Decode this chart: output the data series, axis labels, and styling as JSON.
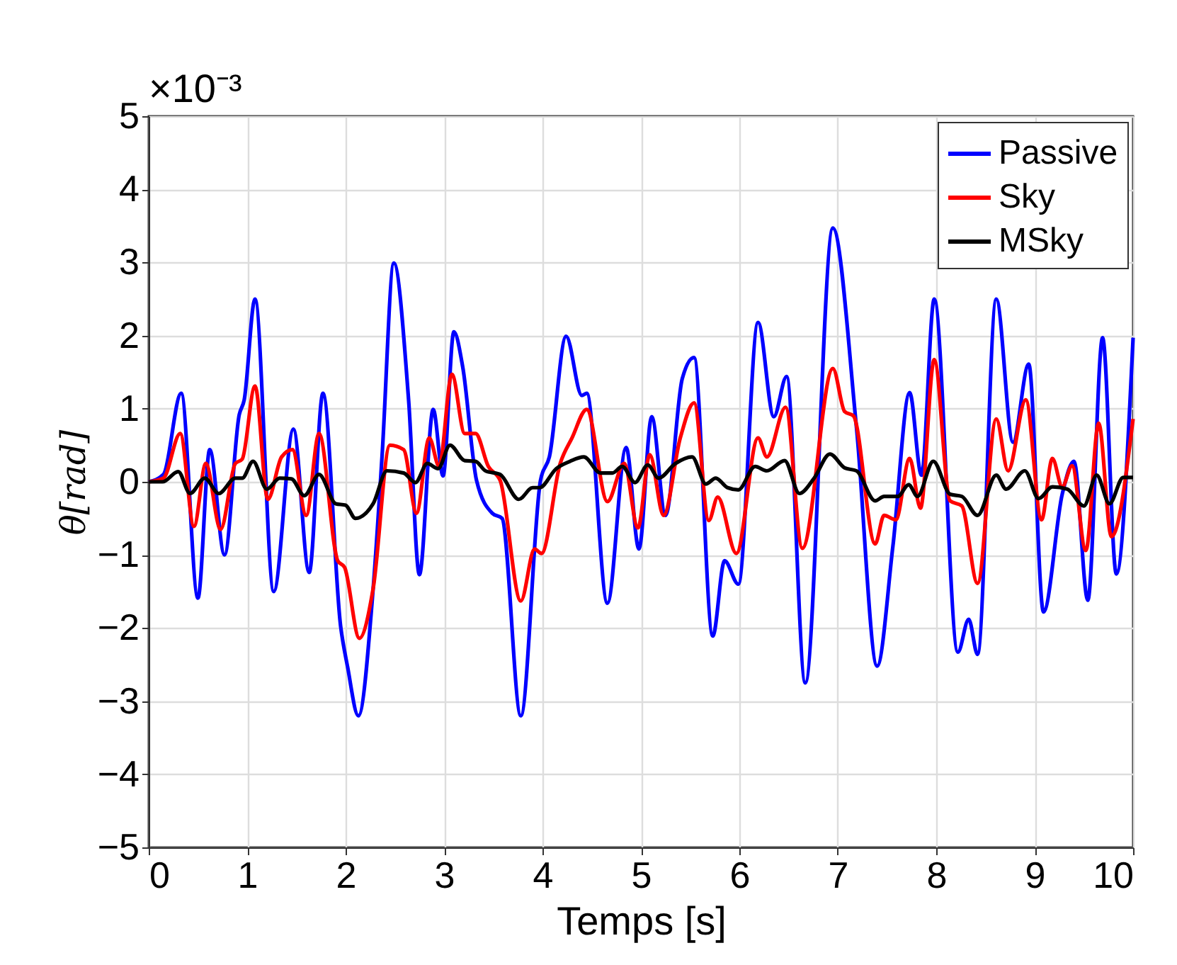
{
  "chart_data": {
    "type": "line",
    "xlabel": "Temps [s]",
    "ylabel": "θ[rad]",
    "annotations": [
      "×10⁻³"
    ],
    "xlim": [
      0,
      10
    ],
    "xticks": [
      0,
      1,
      2,
      3,
      4,
      5,
      6,
      7,
      8,
      9,
      10
    ],
    "ylim": [
      -5,
      5
    ],
    "yticks": [
      -5,
      -4,
      -3,
      -2,
      -1,
      0,
      1,
      2,
      3,
      4,
      5
    ],
    "grid": true,
    "legend": "top right",
    "line_style": "solid",
    "marker": "none",
    "series": [
      {
        "name": "Passive",
        "color": "#0000ff",
        "x": [
          0,
          0.15,
          0.33,
          0.5,
          0.62,
          0.77,
          0.92,
          0.97,
          1.08,
          1.27,
          1.47,
          1.63,
          1.77,
          1.95,
          2.02,
          2.13,
          2.28,
          2.37,
          2.49,
          2.64,
          2.75,
          2.89,
          2.99,
          3.1,
          3.19,
          3.33,
          3.49,
          3.59,
          3.78,
          3.98,
          4.07,
          4.24,
          4.4,
          4.45,
          4.66,
          4.85,
          4.98,
          5.11,
          5.25,
          5.42,
          5.54,
          5.73,
          5.85,
          5.99,
          6.19,
          6.35,
          6.48,
          6.67,
          6.95,
          7.19,
          7.4,
          7.56,
          7.73,
          7.85,
          7.98,
          8.22,
          8.33,
          8.42,
          8.61,
          8.78,
          8.94,
          9.09,
          9.28,
          9.4,
          9.54,
          9.69,
          9.83,
          10
        ],
        "values": [
          0,
          0.1,
          1.21,
          -1.59,
          0.44,
          -1.0,
          0.92,
          1.12,
          2.5,
          -1.5,
          0.72,
          -1.24,
          1.21,
          -1.98,
          -2.53,
          -3.2,
          -1.46,
          0.34,
          2.99,
          1.12,
          -1.27,
          0.99,
          0.08,
          2.05,
          1.57,
          0.02,
          -0.43,
          -0.5,
          -3.2,
          0.02,
          0.34,
          1.99,
          1.18,
          1.21,
          -1.66,
          0.47,
          -0.92,
          0.89,
          -0.46,
          1.41,
          1.7,
          -2.11,
          -1.08,
          -1.4,
          2.18,
          0.89,
          1.44,
          -2.75,
          3.47,
          0.74,
          -2.52,
          -0.88,
          1.22,
          0.09,
          2.5,
          -2.33,
          -1.88,
          -2.36,
          2.5,
          0.54,
          1.61,
          -1.78,
          -0.17,
          0.28,
          -1.62,
          1.97,
          -1.26,
          1.97
        ]
      },
      {
        "name": "Sky",
        "color": "#ff0000",
        "x": [
          0,
          0.15,
          0.32,
          0.46,
          0.58,
          0.73,
          0.88,
          0.95,
          1.08,
          1.21,
          1.35,
          1.46,
          1.6,
          1.73,
          1.92,
          1.99,
          2.14,
          2.28,
          2.45,
          2.59,
          2.72,
          2.85,
          2.95,
          3.08,
          3.21,
          3.32,
          3.45,
          3.57,
          3.78,
          3.92,
          3.99,
          4.18,
          4.3,
          4.45,
          4.66,
          4.83,
          4.97,
          5.09,
          5.23,
          5.4,
          5.54,
          5.69,
          5.78,
          5.97,
          6.19,
          6.28,
          6.47,
          6.64,
          6.95,
          7.07,
          7.16,
          7.38,
          7.47,
          7.59,
          7.73,
          7.84,
          7.98,
          8.14,
          8.26,
          8.42,
          8.61,
          8.73,
          8.91,
          9.07,
          9.18,
          9.28,
          9.38,
          9.52,
          9.65,
          9.78,
          10
        ],
        "values": [
          0,
          0.05,
          0.66,
          -0.61,
          0.25,
          -0.65,
          0.25,
          0.31,
          1.31,
          -0.24,
          0.34,
          0.44,
          -0.46,
          0.66,
          -1.08,
          -1.17,
          -2.14,
          -1.46,
          0.5,
          0.44,
          -0.43,
          0.6,
          0.21,
          1.47,
          0.66,
          0.66,
          0.21,
          0.02,
          -1.63,
          -0.92,
          -0.98,
          0.25,
          0.6,
          0.99,
          -0.27,
          0.25,
          -0.63,
          0.37,
          -0.46,
          0.6,
          1.08,
          -0.53,
          -0.21,
          -0.98,
          0.6,
          0.34,
          1.02,
          -0.91,
          1.55,
          0.96,
          0.9,
          -0.85,
          -0.46,
          -0.52,
          0.32,
          -0.36,
          1.67,
          -0.26,
          -0.33,
          -1.39,
          0.86,
          0.15,
          1.12,
          -0.52,
          0.32,
          -0.07,
          0.22,
          -0.94,
          0.8,
          -0.75,
          0.86
        ]
      },
      {
        "name": "MSky",
        "color": "#000000",
        "x": [
          0,
          0.14,
          0.3,
          0.42,
          0.57,
          0.71,
          0.88,
          0.95,
          1.06,
          1.2,
          1.33,
          1.45,
          1.58,
          1.73,
          1.9,
          2.0,
          2.1,
          2.28,
          2.42,
          2.59,
          2.71,
          2.83,
          2.94,
          3.06,
          3.21,
          3.32,
          3.42,
          3.57,
          3.76,
          3.9,
          3.97,
          4.14,
          4.28,
          4.42,
          4.59,
          4.71,
          4.81,
          4.94,
          5.07,
          5.18,
          5.35,
          5.52,
          5.66,
          5.76,
          5.88,
          5.99,
          6.16,
          6.28,
          6.46,
          6.61,
          6.76,
          6.92,
          7.07,
          7.19,
          7.38,
          7.47,
          7.61,
          7.72,
          7.81,
          7.97,
          8.14,
          8.26,
          8.42,
          8.61,
          8.71,
          8.9,
          9.04,
          9.18,
          9.33,
          9.5,
          9.63,
          9.76,
          9.9,
          10
        ],
        "values": [
          0,
          0,
          0.14,
          -0.16,
          0.05,
          -0.16,
          0.05,
          0.05,
          0.28,
          -0.1,
          0.05,
          0.04,
          -0.19,
          0.1,
          -0.3,
          -0.32,
          -0.5,
          -0.3,
          0.15,
          0.12,
          -0.01,
          0.25,
          0.18,
          0.5,
          0.29,
          0.28,
          0.15,
          0.1,
          -0.24,
          -0.08,
          -0.08,
          0.18,
          0.28,
          0.34,
          0.12,
          0.12,
          0.21,
          -0.01,
          0.23,
          0.05,
          0.25,
          0.34,
          -0.03,
          0.05,
          -0.08,
          -0.11,
          0.21,
          0.15,
          0.29,
          -0.16,
          0.05,
          0.38,
          0.19,
          0.15,
          -0.26,
          -0.2,
          -0.2,
          -0.04,
          -0.2,
          0.28,
          -0.17,
          -0.2,
          -0.46,
          0.09,
          -0.1,
          0.15,
          -0.23,
          -0.07,
          -0.1,
          -0.33,
          0.09,
          -0.3,
          0.06,
          0.06
        ]
      }
    ]
  }
}
